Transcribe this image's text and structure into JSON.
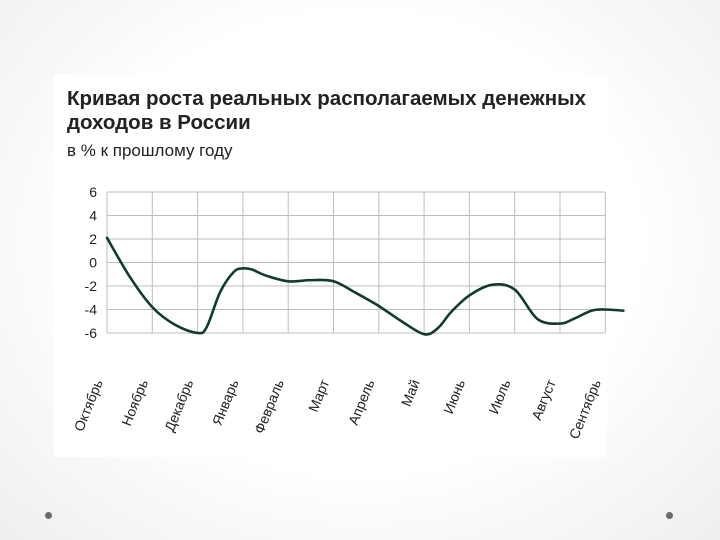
{
  "slide": {
    "title": "Кривая роста реальных располагаемых денежных доходов в России",
    "subtitle": "в % к прошлому году"
  },
  "colors": {
    "line": "#0f3d28",
    "grid": "#bdbdbd",
    "text": "#222222"
  },
  "chart_data": {
    "type": "line",
    "title": "Кривая роста реальных располагаемых денежных доходов в России",
    "subtitle": "в % к прошлому году",
    "categories": [
      "Октябрь",
      "Ноябрь",
      "Декабрь",
      "Январь",
      "Февраль",
      "Март",
      "Апрель",
      "Май",
      "Июнь",
      "Июль",
      "Август",
      "Сентябрь"
    ],
    "ylim": [
      -6,
      6
    ],
    "yticks": [
      6,
      4,
      2,
      0,
      -2,
      -4,
      -6
    ],
    "grid": true,
    "x": [
      0,
      0.5,
      1,
      1.5,
      2,
      2.2,
      2.5,
      2.8,
      3,
      3.2,
      3.5,
      4,
      4.5,
      5,
      5.5,
      6,
      6.5,
      7,
      7.3,
      7.6,
      8,
      8.5,
      9,
      9.5,
      10,
      10.3,
      10.7,
      11,
      11.4
    ],
    "values": [
      2.1,
      -1.2,
      -3.8,
      -5.3,
      -6.0,
      -5.5,
      -2.5,
      -0.8,
      -0.5,
      -0.6,
      -1.1,
      -1.6,
      -1.5,
      -1.6,
      -2.6,
      -3.7,
      -5.0,
      -6.1,
      -5.6,
      -4.2,
      -2.8,
      -1.9,
      -2.3,
      -4.8,
      -5.2,
      -4.8,
      -4.1,
      -4.0,
      -4.1
    ]
  }
}
